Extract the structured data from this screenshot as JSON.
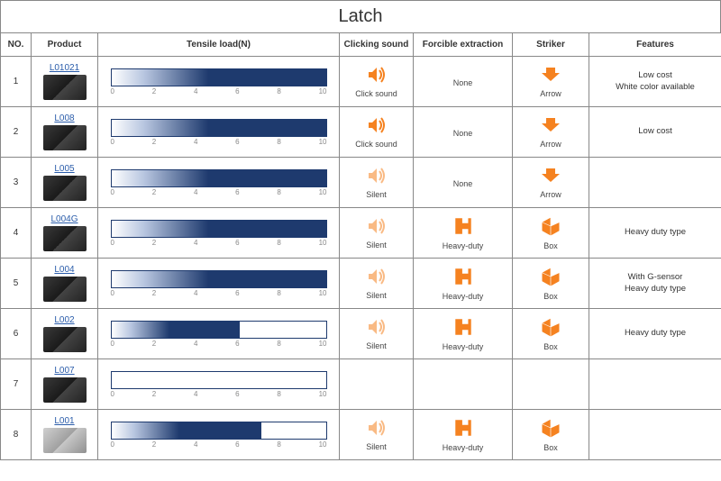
{
  "title": "Latch",
  "columns": {
    "no": "NO.",
    "product": "Product",
    "tensile": "Tensile load(N)",
    "clicking": "Clicking sound",
    "forcible": "Forcible extraction",
    "striker": "Striker",
    "features": "Features"
  },
  "axis": {
    "ticks": [
      "0",
      "2",
      "4",
      "6",
      "8",
      "10"
    ],
    "max": 10
  },
  "rows": [
    {
      "no": "1",
      "code": "L01021",
      "bar_value": 10,
      "click_type": "sound",
      "click_label": "Click sound",
      "forcible_type": "none",
      "forcible_label": "None",
      "striker_type": "arrow",
      "striker_label": "Arrow",
      "features": "Low cost\nWhite color available",
      "img_style": "dark"
    },
    {
      "no": "2",
      "code": "L008",
      "bar_value": 10,
      "click_type": "sound",
      "click_label": "Click sound",
      "forcible_type": "none",
      "forcible_label": "None",
      "striker_type": "arrow",
      "striker_label": "Arrow",
      "features": "Low cost",
      "img_style": "dark"
    },
    {
      "no": "3",
      "code": "L005",
      "bar_value": 10,
      "click_type": "silent",
      "click_label": "Silent",
      "forcible_type": "none",
      "forcible_label": "None",
      "striker_type": "arrow",
      "striker_label": "Arrow",
      "features": "",
      "img_style": "dark"
    },
    {
      "no": "4",
      "code": "L004G",
      "bar_value": 10,
      "click_type": "silent",
      "click_label": "Silent",
      "forcible_type": "heavy",
      "forcible_label": "Heavy-duty",
      "striker_type": "box",
      "striker_label": "Box",
      "features": "Heavy duty type",
      "img_style": "dark"
    },
    {
      "no": "5",
      "code": "L004",
      "bar_value": 10,
      "click_type": "silent",
      "click_label": "Silent",
      "forcible_type": "heavy",
      "forcible_label": "Heavy-duty",
      "striker_type": "box",
      "striker_label": "Box",
      "features": "With G-sensor\nHeavy duty type",
      "img_style": "dark"
    },
    {
      "no": "6",
      "code": "L002",
      "bar_value": 6,
      "click_type": "silent",
      "click_label": "Silent",
      "forcible_type": "heavy",
      "forcible_label": "Heavy-duty",
      "striker_type": "box",
      "striker_label": "Box",
      "features": "Heavy duty type",
      "img_style": "dark"
    },
    {
      "no": "7",
      "code": "L007",
      "bar_value": null,
      "click_type": "",
      "click_label": "",
      "forcible_type": "",
      "forcible_label": "",
      "striker_type": "",
      "striker_label": "",
      "features": "",
      "img_style": "dark"
    },
    {
      "no": "8",
      "code": "L001",
      "bar_value": 7,
      "click_type": "silent",
      "click_label": "Silent",
      "forcible_type": "heavy",
      "forcible_label": "Heavy-duty",
      "striker_type": "box",
      "striker_label": "Box",
      "features": "",
      "img_style": "light"
    }
  ],
  "colors": {
    "bar_dark": "#1e3a6e",
    "icon_orange": "#f58220",
    "border": "#888888",
    "link": "#2a5caa"
  }
}
